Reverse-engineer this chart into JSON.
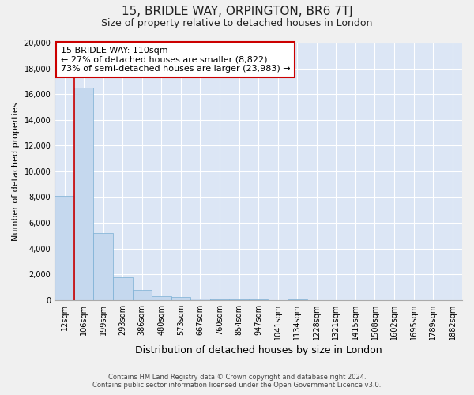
{
  "title1": "15, BRIDLE WAY, ORPINGTON, BR6 7TJ",
  "title2": "Size of property relative to detached houses in London",
  "xlabel": "Distribution of detached houses by size in London",
  "ylabel": "Number of detached properties",
  "bar_color": "#c5d8ee",
  "bar_edge_color": "#7aafd4",
  "plot_bg_color": "#dce6f5",
  "fig_bg_color": "#f0f0f0",
  "grid_color": "#ffffff",
  "categories": [
    "12sqm",
    "106sqm",
    "199sqm",
    "293sqm",
    "386sqm",
    "480sqm",
    "573sqm",
    "667sqm",
    "760sqm",
    "854sqm",
    "947sqm",
    "1041sqm",
    "1134sqm",
    "1228sqm",
    "1321sqm",
    "1415sqm",
    "1508sqm",
    "1602sqm",
    "1695sqm",
    "1789sqm",
    "1882sqm"
  ],
  "values": [
    8100,
    16500,
    5200,
    1750,
    750,
    300,
    200,
    100,
    50,
    50,
    30,
    0,
    30,
    0,
    0,
    0,
    0,
    0,
    0,
    0,
    0
  ],
  "ylim": [
    0,
    20000
  ],
  "yticks": [
    0,
    2000,
    4000,
    6000,
    8000,
    10000,
    12000,
    14000,
    16000,
    18000,
    20000
  ],
  "property_line_color": "#cc0000",
  "annotation_text": "15 BRIDLE WAY: 110sqm\n← 27% of detached houses are smaller (8,822)\n73% of semi-detached houses are larger (23,983) →",
  "annotation_box_color": "#ffffff",
  "annotation_box_edge": "#cc0000",
  "footer1": "Contains HM Land Registry data © Crown copyright and database right 2024.",
  "footer2": "Contains public sector information licensed under the Open Government Licence v3.0.",
  "title1_fontsize": 11,
  "title2_fontsize": 9,
  "annotation_fontsize": 8,
  "axis_label_fontsize": 8,
  "tick_fontsize": 7
}
